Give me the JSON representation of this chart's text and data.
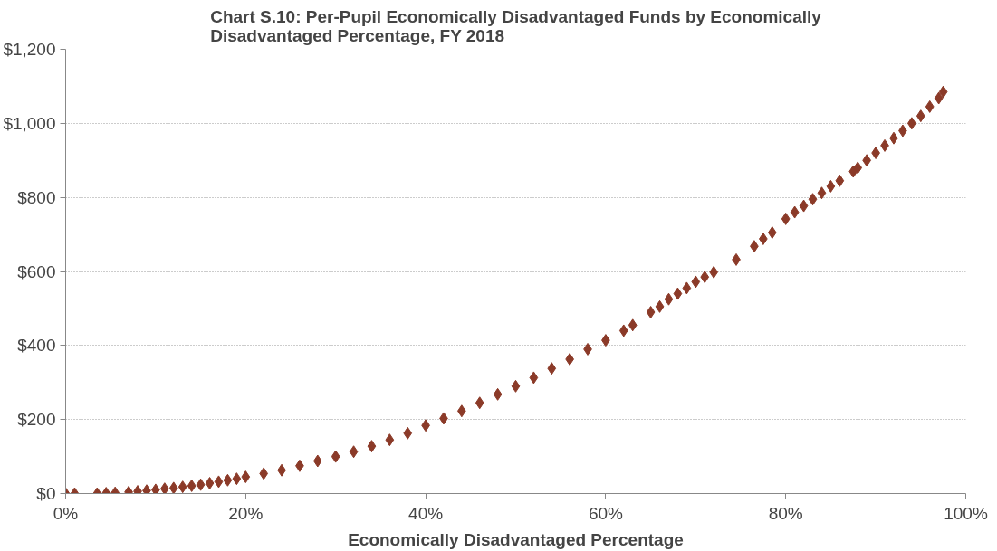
{
  "chart_data": {
    "type": "scatter",
    "title": "Chart S.10: Per-Pupil Economically Disadvantaged Funds by Economically\nDisadvantaged Percentage, FY 2018",
    "xlabel": "Economically Disadvantaged Percentage",
    "x": [
      0,
      1,
      3.5,
      4.5,
      5.5,
      7,
      8,
      9,
      10,
      11,
      12,
      13,
      14,
      15,
      16,
      17,
      18,
      19,
      20,
      22,
      24,
      26,
      28,
      30,
      32,
      34,
      36,
      38,
      40,
      42,
      44,
      46,
      48,
      50,
      52,
      54,
      56,
      58,
      60,
      62,
      63,
      65,
      66,
      67,
      68,
      69,
      70,
      71,
      72,
      74.5,
      76.5,
      77.5,
      78.5,
      80,
      81,
      82,
      83,
      84,
      85,
      86,
      87.5,
      88,
      89,
      90,
      91,
      92,
      93,
      94,
      95,
      96,
      97,
      97.5
    ],
    "series": [
      {
        "color": "#8b3a28",
        "values": [
          0,
          0,
          0,
          1,
          2,
          4,
          6,
          8,
          10,
          13,
          15,
          18,
          21,
          24,
          28,
          32,
          36,
          40,
          45,
          54,
          63,
          75,
          88,
          100,
          113,
          128,
          145,
          163,
          184,
          203,
          223,
          245,
          268,
          290,
          313,
          338,
          363,
          390,
          414,
          440,
          455,
          490,
          505,
          525,
          540,
          555,
          572,
          585,
          598,
          632,
          668,
          688,
          705,
          742,
          760,
          777,
          795,
          812,
          830,
          845,
          870,
          880,
          900,
          920,
          940,
          960,
          980,
          1000,
          1020,
          1045,
          1068,
          1085
        ]
      }
    ],
    "marker": "diamond",
    "xlim": [
      0,
      100
    ],
    "xticks": [
      {
        "value": 0,
        "label": "0%"
      },
      {
        "value": 20,
        "label": "20%"
      },
      {
        "value": 40,
        "label": "40%"
      },
      {
        "value": 60,
        "label": "60%"
      },
      {
        "value": 80,
        "label": "80%"
      },
      {
        "value": 100,
        "label": "100%"
      }
    ],
    "ylim": [
      0,
      1200
    ],
    "yticks": [
      {
        "value": 0,
        "label": "$0"
      },
      {
        "value": 200,
        "label": "$200"
      },
      {
        "value": 400,
        "label": "$400"
      },
      {
        "value": 600,
        "label": "$600"
      },
      {
        "value": 800,
        "label": "$800"
      },
      {
        "value": 1000,
        "label": "$1,000"
      },
      {
        "value": 1200,
        "label": "$1,200"
      }
    ],
    "grid": "y"
  }
}
